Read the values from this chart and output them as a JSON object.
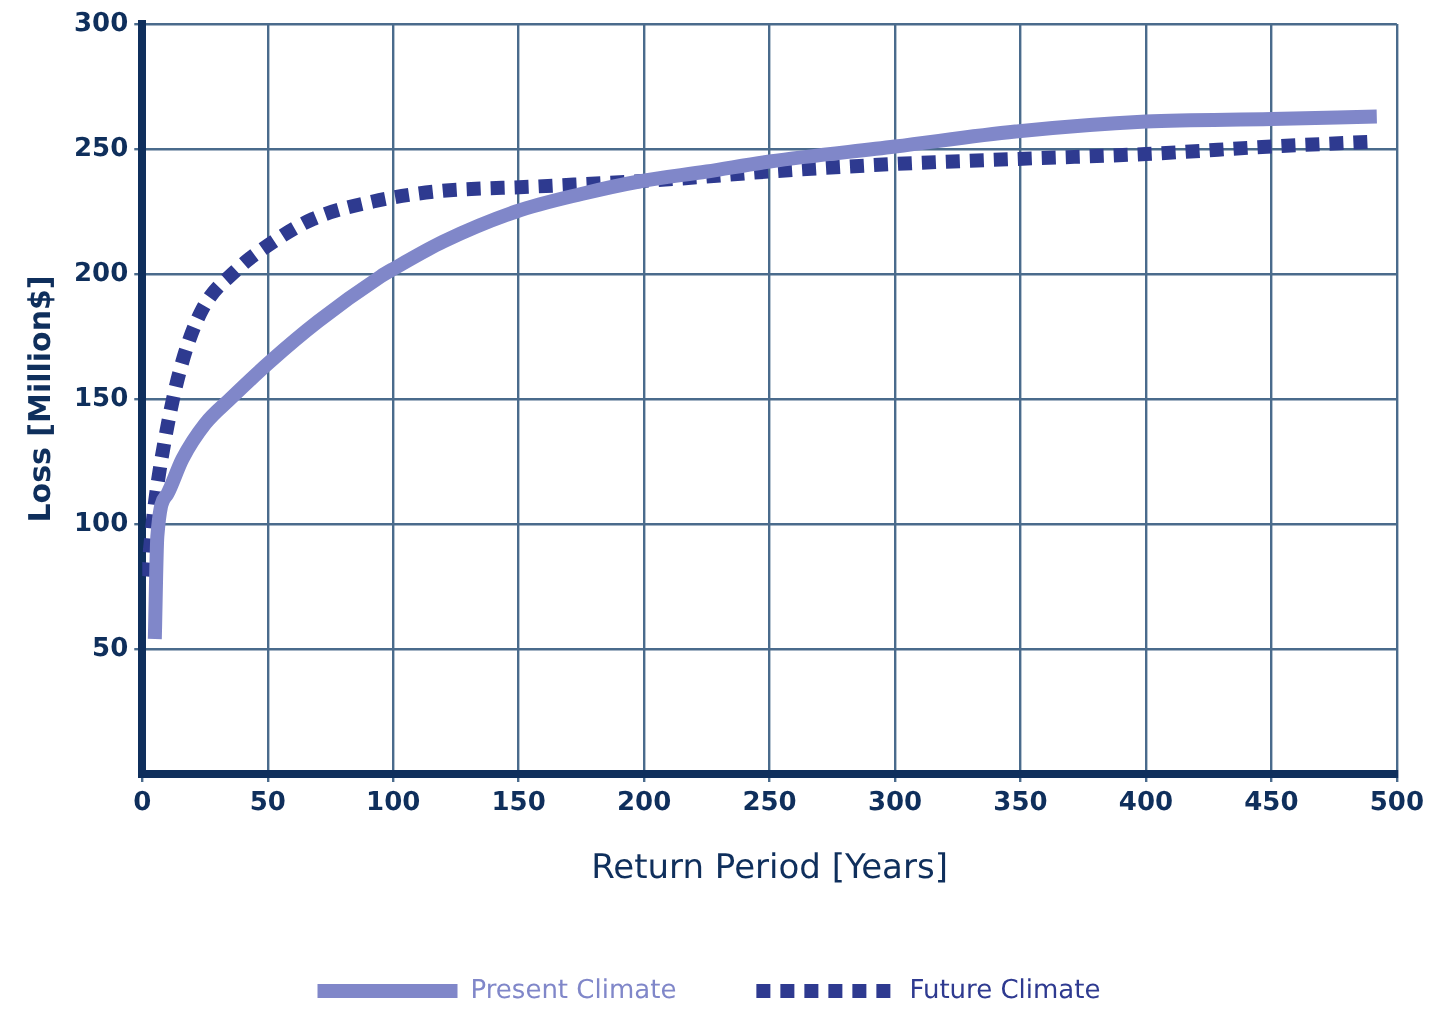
{
  "chart_data": {
    "type": "line",
    "xlabel": "Return Period [Years]",
    "ylabel": "Loss [Million$]",
    "xlim": [
      0,
      500
    ],
    "xticks": [
      0,
      50,
      100,
      150,
      200,
      250,
      300,
      350,
      400,
      450,
      500
    ],
    "ylim": [
      0,
      300
    ],
    "yticks": [
      50,
      100,
      150,
      200,
      250,
      300
    ],
    "grid": true,
    "legend": "bottom",
    "marker": "none",
    "series": [
      {
        "name": "Present Climate",
        "color": "#8087c9",
        "line_style": "solid",
        "x": [
          5,
          6,
          10,
          16,
          25,
          35,
          51,
          70,
          95,
          100,
          120,
          149,
          175,
          198,
          225,
          250,
          300,
          348,
          400,
          450,
          492
        ],
        "values": [
          54,
          95,
          112,
          126,
          140,
          150,
          165,
          181,
          199,
          202,
          213,
          225,
          232,
          237,
          241,
          245,
          251,
          257,
          261,
          262,
          263
        ]
      },
      {
        "name": "Future Climate",
        "color": "#2e3a90",
        "line_style": "dotted",
        "x": [
          2,
          5,
          10,
          16,
          24,
          38,
          48,
          68,
          92,
          117,
          157,
          212,
          250,
          300,
          348,
          400,
          450,
          492
        ],
        "values": [
          79,
          108,
          139,
          165,
          186,
          202,
          210,
          222,
          229,
          233,
          235,
          238,
          241,
          244,
          246,
          248,
          251,
          253
        ]
      }
    ]
  }
}
